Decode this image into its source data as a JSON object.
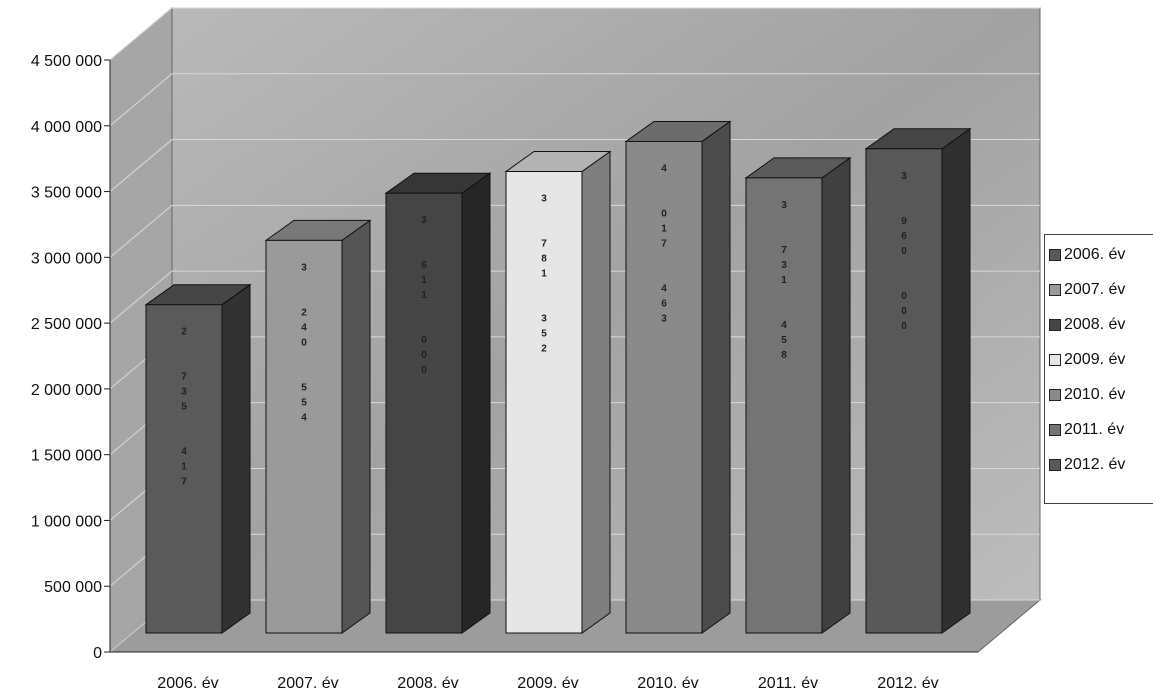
{
  "chart_data": {
    "type": "bar",
    "style": "3d",
    "categories": [
      "2006. év",
      "2007. év",
      "2008. év",
      "2009. év",
      "2010. év",
      "2011. év",
      "2012. év"
    ],
    "values": [
      2735417,
      3240554,
      3611000,
      3781352,
      4017463,
      3731458,
      3960000
    ],
    "data_labels": [
      "2 735 417",
      "3 240 554",
      "3 611 000",
      "3 781 352",
      "4 017 463",
      "3 731 458",
      "3 960 000"
    ],
    "y_ticks": [
      "0",
      "500 000",
      "1 000 000",
      "1 500 000",
      "2 000 000",
      "2 500 000",
      "3 000 000",
      "3 500 000",
      "4 000 000",
      "4 500 000"
    ],
    "ylim": [
      0,
      4500000
    ],
    "grid": true,
    "legend_position": "right",
    "legend": [
      "2006. év",
      "2007. év",
      "2008. év",
      "2009. év",
      "2010. év",
      "2011. év",
      "2012. év"
    ],
    "colors": [
      "#5a5a5a",
      "#9a9a9a",
      "#454545",
      "#e6e6e6",
      "#8a8a8a",
      "#747474",
      "#585858"
    ],
    "title": "",
    "xlabel": "",
    "ylabel": ""
  }
}
